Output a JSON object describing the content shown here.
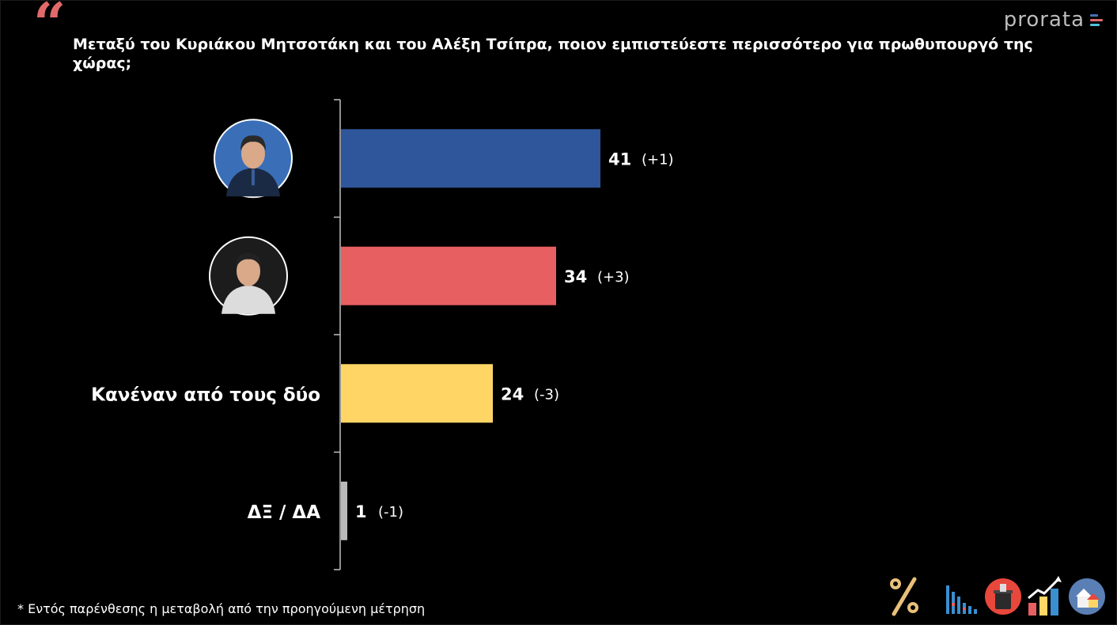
{
  "header": {
    "quote_glyph": "“",
    "title": "Μεταξύ του Κυριάκου Μητσοτάκη και του Αλέξη Τσίπρα, ποιον εμπιστεύεστε περισσότερο για πρωθυπουργό της χώρας;",
    "brand": "prorata"
  },
  "footnote": "* Εντός παρένθεσης η μεταβολή από την προηγούμενη μέτρηση",
  "colors": {
    "background": "#000000",
    "quote": "#e06a6a",
    "brand_bars": [
      "#4a6fb0",
      "#e06a6a",
      "#4fc3d8"
    ]
  },
  "chart_data": {
    "type": "bar",
    "orientation": "horizontal",
    "categories": [
      "Κυριάκος Μητσοτάκης (photo)",
      "Αλέξης Τσίπρας (photo)",
      "Κανέναν από τους δύο",
      "ΔΞ / ΔΑ"
    ],
    "category_labels": [
      "",
      "",
      "Κανέναν από τους δύο",
      "ΔΞ / ΔΑ"
    ],
    "category_avatars": [
      "portrait-icon",
      "portrait-icon",
      "",
      ""
    ],
    "values": [
      41,
      34,
      24,
      1
    ],
    "value_labels": [
      "41",
      "34",
      "24",
      "1"
    ],
    "changes": [
      "(+1)",
      "(+3)",
      "(-3)",
      "(-1)"
    ],
    "colors": [
      "#2f559a",
      "#e85f62",
      "#ffd666",
      "#b9b9b9"
    ],
    "xlim": [
      0,
      100
    ],
    "grid": false,
    "legend": "none"
  },
  "footer_icons": [
    "percent-icon",
    "bar-chart-icon",
    "ballot-box-icon",
    "growth-chart-icon",
    "houses-icon"
  ]
}
